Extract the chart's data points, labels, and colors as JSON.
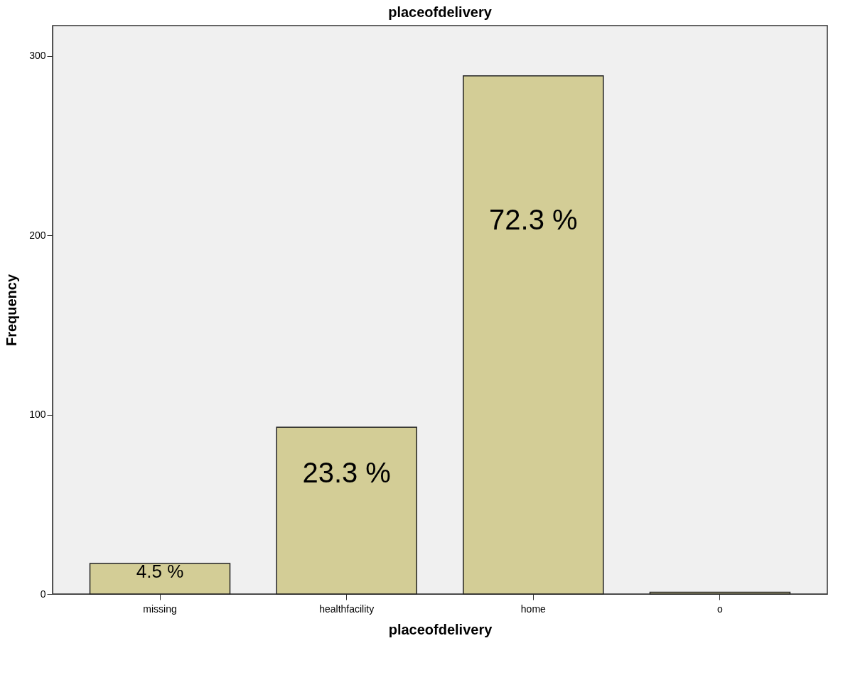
{
  "chart_data": {
    "type": "bar",
    "title": "placeofdelivery",
    "xlabel": "placeofdelivery",
    "ylabel": "Frequency",
    "categories": [
      "missing",
      "healthfacility",
      "home",
      "o"
    ],
    "values": [
      17,
      93,
      289,
      1
    ],
    "annotations": [
      "4.5 %",
      "23.3 %",
      "72.3 %"
    ],
    "color": "#d3cd96",
    "ylim": [
      0,
      317
    ],
    "yticks": [
      0,
      100,
      200,
      300
    ],
    "grid": false
  }
}
